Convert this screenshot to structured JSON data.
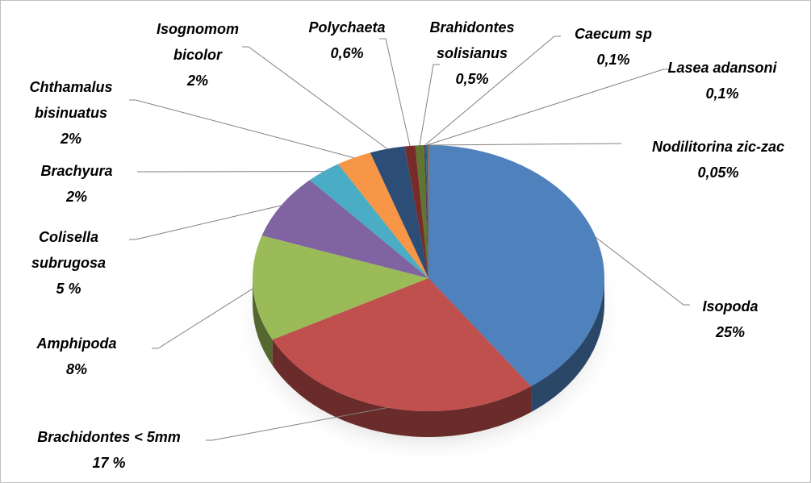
{
  "chart_data": {
    "type": "pie",
    "categories": [
      "Isopoda",
      "Brachidontes < 5mm",
      "Amphipoda",
      "Colisella subrugosa",
      "Brachyura",
      "Chthamalus bisinuatus",
      "Isognomom bicolor",
      "Polychaeta",
      "Brahidontes solisianus",
      "Caecum sp",
      "Lasea adansoni",
      "Nodilitorina zic-zac"
    ],
    "values": [
      25,
      17,
      8,
      5,
      2,
      2,
      2,
      0.6,
      0.5,
      0.1,
      0.1,
      0.05
    ],
    "value_labels": [
      "25%",
      "17 %",
      "8%",
      "5 %",
      "2%",
      "2%",
      "2%",
      "0,6%",
      "0,5%",
      "0,1%",
      "0,1%",
      "0,05%"
    ],
    "colors": [
      "#4f81bd",
      "#c0504d",
      "#9bbb59",
      "#8064a2",
      "#4bacc6",
      "#f79646",
      "#2c4d75",
      "#772c2a",
      "#5f7530",
      "#4d3b62",
      "#276a7c",
      "#b65708"
    ]
  }
}
